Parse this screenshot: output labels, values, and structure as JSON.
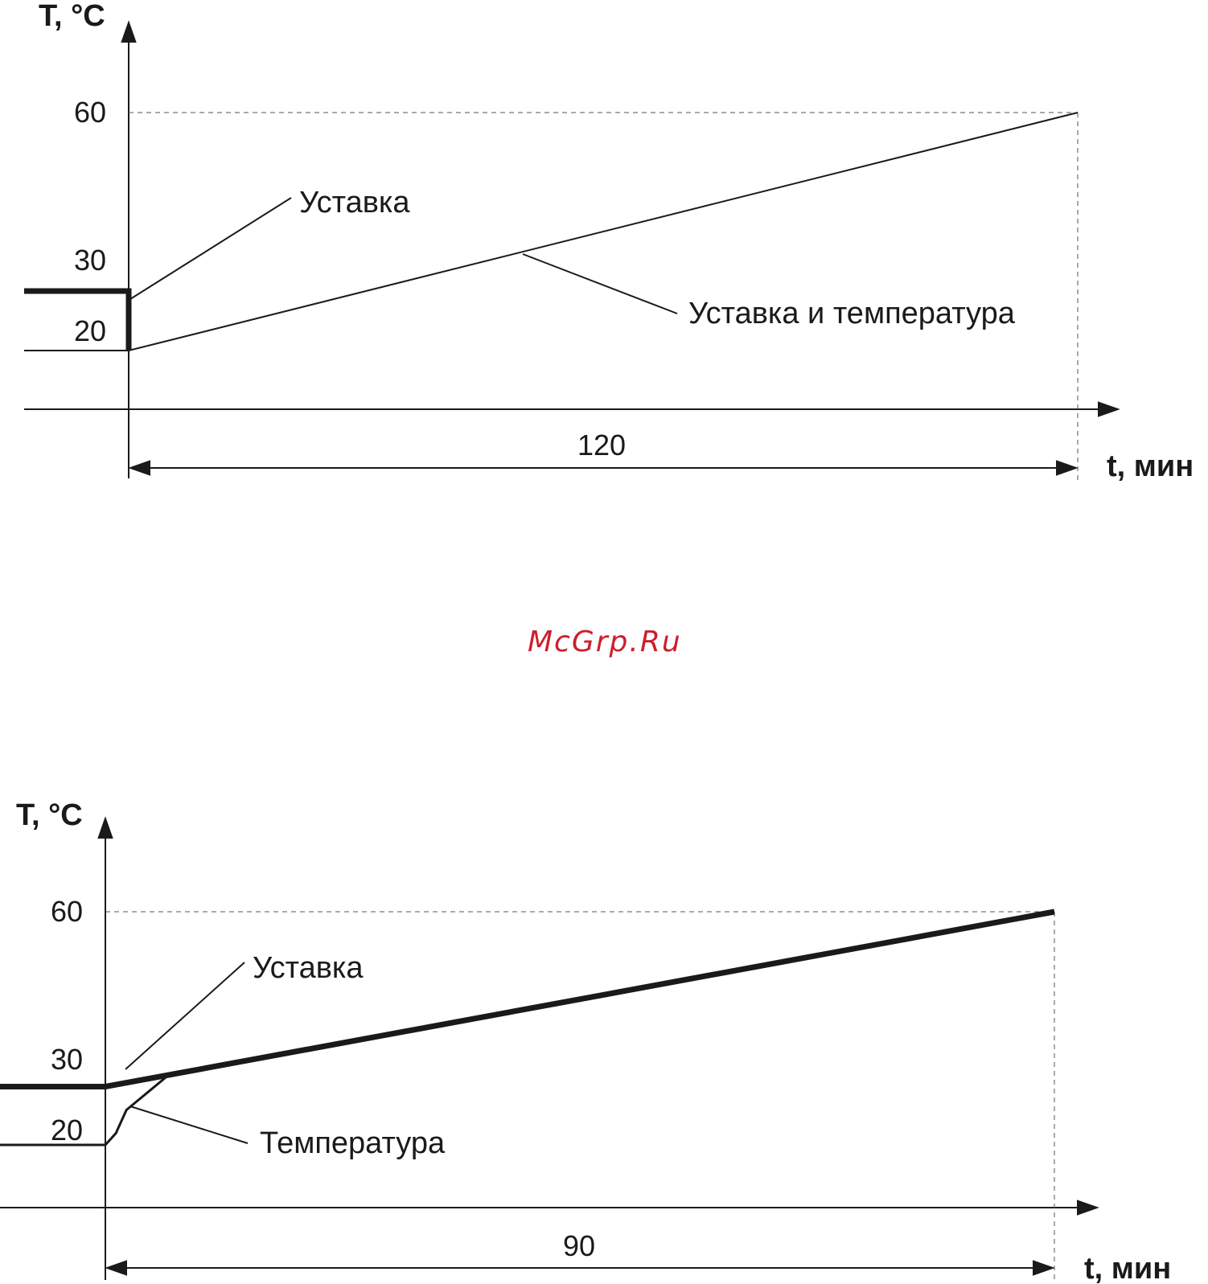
{
  "watermark": "McGrp.Ru",
  "colors": {
    "ink": "#1a1a1a",
    "watermark": "#cc1f2e",
    "guide": "#555555"
  },
  "chart_data": [
    {
      "type": "line",
      "ylabel": "T, °C",
      "xlabel": "t, мин",
      "y_ticks": [
        "20",
        "30",
        "60"
      ],
      "duration_label": "120",
      "series": [
        {
          "name": "Уставка",
          "points": [
            [
              -15,
              30
            ],
            [
              0,
              30
            ],
            [
              0,
              20
            ]
          ]
        },
        {
          "name": "Уставка и температура",
          "points": [
            [
              -15,
              20
            ],
            [
              0,
              20
            ],
            [
              120,
              60
            ]
          ]
        }
      ],
      "annotations": [
        "Уставка",
        "Уставка и температура"
      ]
    },
    {
      "type": "line",
      "ylabel": "T, °C",
      "xlabel": "t, мин",
      "y_ticks": [
        "20",
        "30",
        "60"
      ],
      "duration_label": "90",
      "series": [
        {
          "name": "Уставка",
          "points": [
            [
              -15,
              30
            ],
            [
              0,
              30
            ],
            [
              90,
              60
            ]
          ]
        },
        {
          "name": "Температура",
          "points": [
            [
              -15,
              20
            ],
            [
              0,
              20
            ],
            [
              1,
              22
            ],
            [
              2,
              26
            ],
            [
              4,
              29
            ],
            [
              6,
              32
            ],
            [
              90,
              60
            ]
          ]
        }
      ],
      "annotations": [
        "Уставка",
        "Температура"
      ]
    }
  ]
}
